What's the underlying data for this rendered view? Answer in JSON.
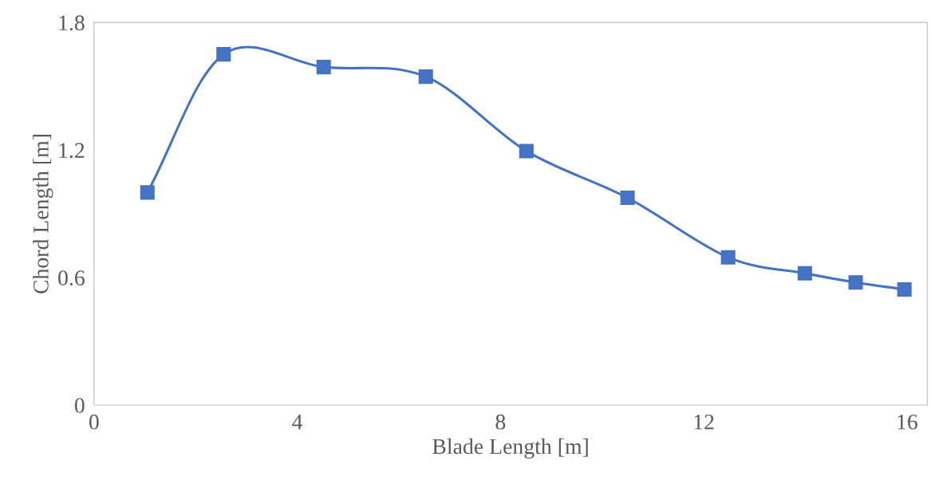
{
  "chart_data": {
    "type": "line",
    "xlabel": "Blade Length [m]",
    "ylabel": "Chord Length [m]",
    "x": [
      1.05,
      2.55,
      4.52,
      6.53,
      8.51,
      10.5,
      12.48,
      13.99,
      14.99,
      15.95
    ],
    "series": [
      {
        "color": "#4472c4",
        "values": [
          1.0,
          1.65,
          1.59,
          1.545,
          1.195,
          0.975,
          0.695,
          0.62,
          0.577,
          0.544
        ]
      }
    ],
    "marker": "square",
    "line_style": "solid",
    "xlim": [
      0,
      16.4
    ],
    "ylim": [
      0,
      1.8
    ],
    "xticks": [
      0,
      4,
      8,
      12,
      16
    ],
    "yticks": [
      0,
      0.6,
      1.2,
      1.8
    ]
  }
}
